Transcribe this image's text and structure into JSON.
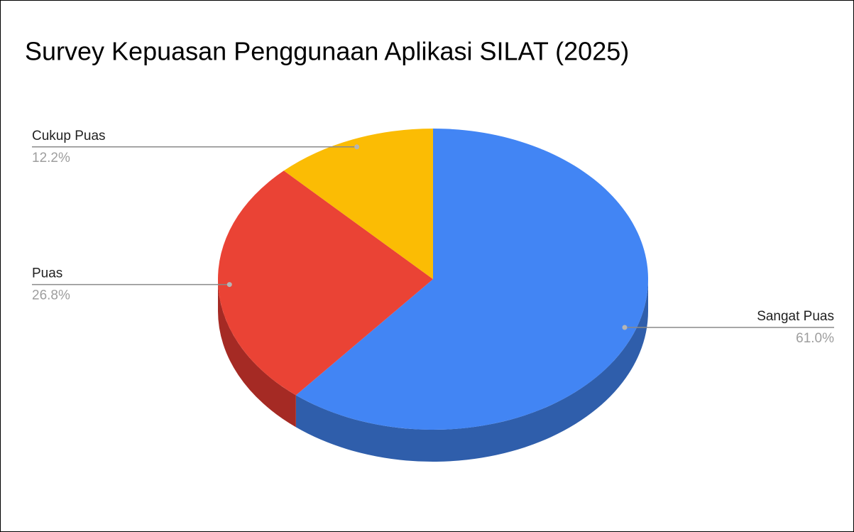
{
  "chart_data": {
    "type": "pie",
    "title": "Survey Kepuasan Penggunaan Aplikasi SILAT (2025)",
    "categories": [
      "Sangat Puas",
      "Puas",
      "Cukup Puas"
    ],
    "values": [
      61.0,
      26.8,
      12.2
    ],
    "value_labels": [
      "61.0%",
      "26.8%",
      "12.2%"
    ],
    "colors": [
      "#4285f4",
      "#ea4335",
      "#fbbc04"
    ],
    "side_colors": [
      "#2f5eab",
      "#a52a24",
      "#b08403"
    ],
    "three_d": true
  }
}
